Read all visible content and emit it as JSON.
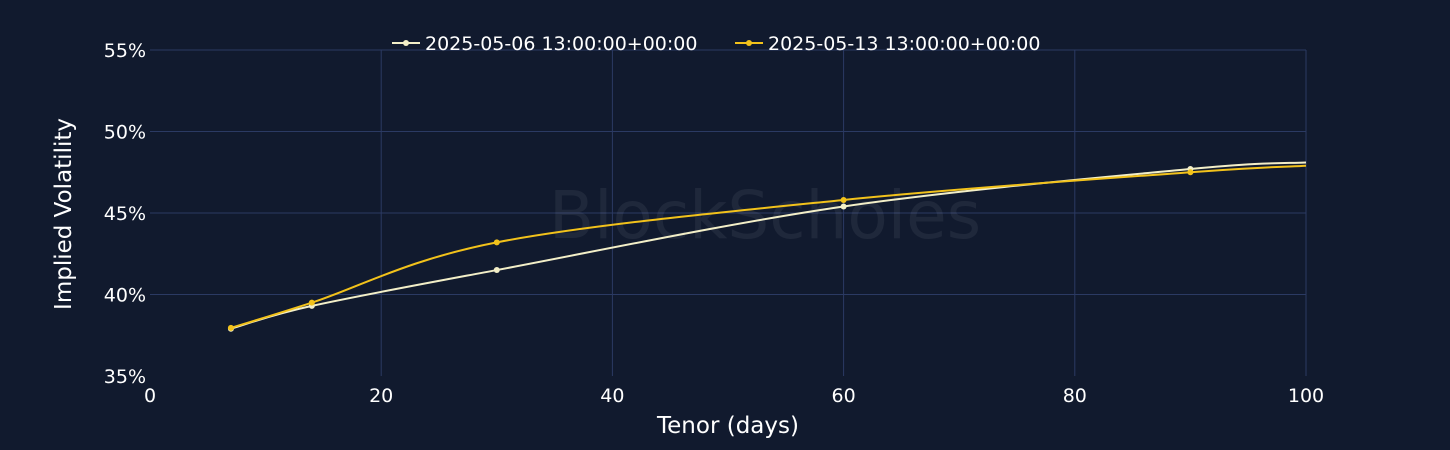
{
  "watermark": "BlockScholes",
  "chart_data": {
    "type": "line",
    "xlabel": "Tenor (days)",
    "ylabel": "Implied Volatility",
    "xlim": [
      0,
      100
    ],
    "ylim": [
      35,
      55
    ],
    "x_ticks": [
      0,
      20,
      40,
      60,
      80,
      100
    ],
    "y_ticks": [
      35,
      40,
      45,
      50,
      55
    ],
    "y_tick_suffix": "%",
    "grid": true,
    "legend_position": "top-center",
    "series": [
      {
        "name": "2025-05-06 13:00:00+00:00",
        "color": "#f3efc8",
        "x": [
          7,
          14,
          30,
          60,
          90,
          100
        ],
        "y": [
          37.9,
          39.3,
          41.5,
          45.4,
          47.7,
          48.1
        ]
      },
      {
        "name": "2025-05-13 13:00:00+00:00",
        "color": "#f2c21b",
        "x": [
          7,
          14,
          30,
          60,
          90,
          100
        ],
        "y": [
          37.95,
          39.5,
          43.2,
          45.8,
          47.5,
          47.9
        ]
      }
    ]
  }
}
